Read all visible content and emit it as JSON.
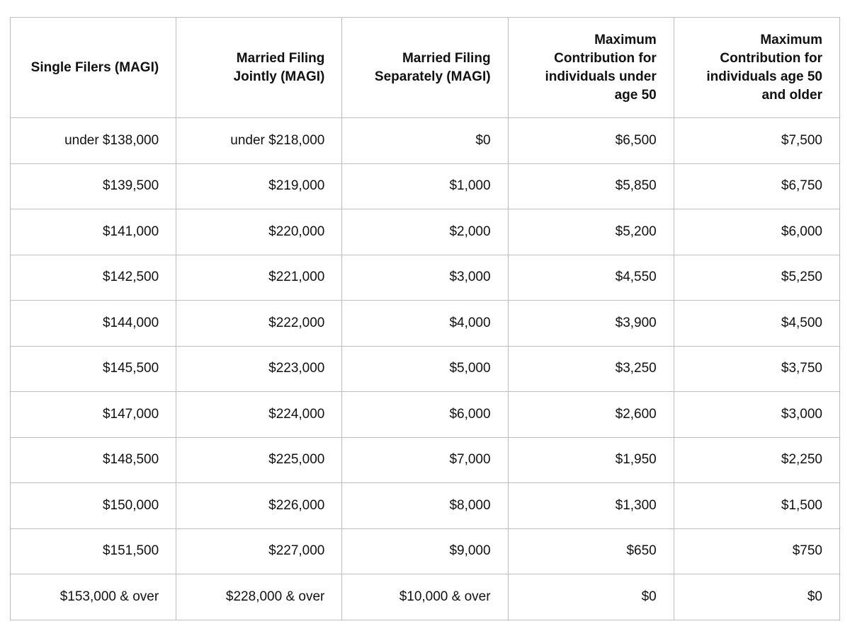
{
  "table": {
    "headers": [
      "Single Filers (MAGI)",
      "Married Filing Jointly (MAGI)",
      "Married Filing Separately (MAGI)",
      "Maximum Contribution for individuals under age 50",
      "Maximum Contribution for individuals age 50 and older"
    ],
    "rows": [
      [
        "under $138,000",
        "under $218,000",
        "$0",
        "$6,500",
        "$7,500"
      ],
      [
        "$139,500",
        "$219,000",
        "$1,000",
        "$5,850",
        "$6,750"
      ],
      [
        "$141,000",
        "$220,000",
        "$2,000",
        "$5,200",
        "$6,000"
      ],
      [
        "$142,500",
        "$221,000",
        "$3,000",
        "$4,550",
        "$5,250"
      ],
      [
        "$144,000",
        "$222,000",
        "$4,000",
        "$3,900",
        "$4,500"
      ],
      [
        "$145,500",
        "$223,000",
        "$5,000",
        "$3,250",
        "$3,750"
      ],
      [
        "$147,000",
        "$224,000",
        "$6,000",
        "$2,600",
        "$3,000"
      ],
      [
        "$148,500",
        "$225,000",
        "$7,000",
        "$1,950",
        "$2,250"
      ],
      [
        "$150,000",
        "$226,000",
        "$8,000",
        "$1,300",
        "$1,500"
      ],
      [
        "$151,500",
        "$227,000",
        "$9,000",
        "$650",
        "$750"
      ],
      [
        "$153,000 & over",
        "$228,000 & over",
        "$10,000 & over",
        "$0",
        "$0"
      ]
    ]
  }
}
